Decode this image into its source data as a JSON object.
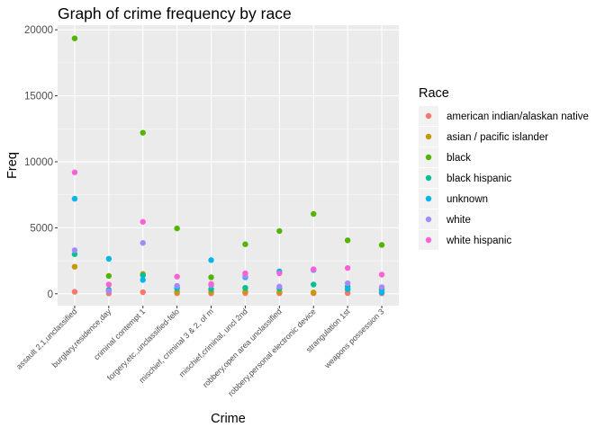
{
  "chart_data": {
    "type": "scatter",
    "title": "Graph of crime frequency by race",
    "xlabel": "Crime",
    "ylabel": "Freq",
    "ylim": [
      -900,
      20350
    ],
    "yticks": [
      0,
      5000,
      10000,
      15000,
      20000
    ],
    "ytick_labels": [
      "0",
      "5000",
      "10000",
      "15000",
      "20000"
    ],
    "grid": true,
    "legend_position": "right",
    "legend_title": "Race",
    "categories": [
      "assault 2,1,unclassified",
      "burglary,residence,day",
      "criminal contempt 1",
      "forgery,etc.,unclassified-felo",
      "mischief, criminal 3 & 2, of m",
      "mischief,criminal,    uncl 2nd",
      "robbery,open area unclassified",
      "robbery,personal electronic device",
      "strangulation 1st",
      "weapons possession 3"
    ],
    "series": [
      {
        "name": "american indian/alaskan native",
        "color": "#F8766D",
        "values": [
          150,
          30,
          120,
          40,
          30,
          50,
          40,
          40,
          50,
          30
        ]
      },
      {
        "name": "asian / pacific islander",
        "color": "#C49A00",
        "values": [
          2050,
          200,
          1500,
          150,
          150,
          200,
          150,
          100,
          300,
          200
        ]
      },
      {
        "name": "black",
        "color": "#53B400",
        "values": [
          19350,
          1350,
          12200,
          4950,
          1250,
          3750,
          4750,
          6050,
          4050,
          3700
        ]
      },
      {
        "name": "black hispanic",
        "color": "#00C094",
        "values": [
          3000,
          300,
          1400,
          400,
          350,
          450,
          400,
          700,
          550,
          350
        ]
      },
      {
        "name": "unknown",
        "color": "#00B6EB",
        "values": [
          7200,
          2650,
          1050,
          500,
          2550,
          1250,
          1700,
          1800,
          350,
          100
        ]
      },
      {
        "name": "white",
        "color": "#A58AFF",
        "values": [
          3300,
          200,
          3850,
          600,
          650,
          1350,
          550,
          1850,
          800,
          500
        ]
      },
      {
        "name": "white hispanic",
        "color": "#FB61D7",
        "values": [
          9200,
          700,
          5450,
          1300,
          750,
          1550,
          1550,
          1850,
          1950,
          1450
        ]
      }
    ]
  }
}
